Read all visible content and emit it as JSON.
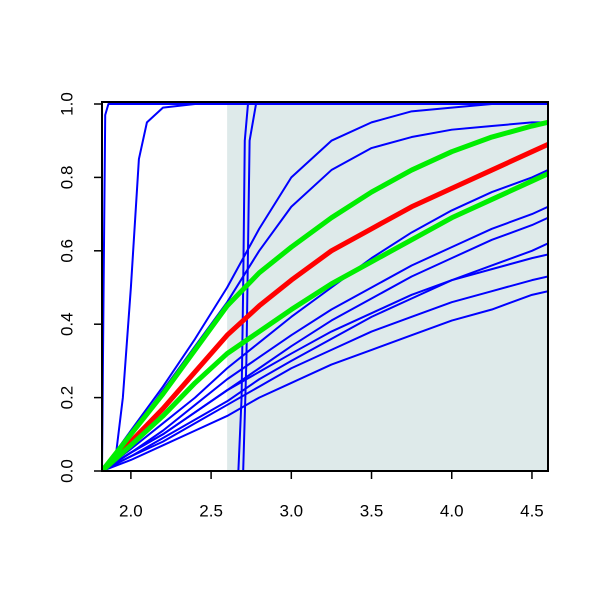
{
  "chart_data": {
    "type": "line",
    "xlim": [
      1.82,
      4.6
    ],
    "ylim": [
      0,
      1
    ],
    "xticks": [
      {
        "value": 2,
        "label": "2.0"
      },
      {
        "value": 2.5,
        "label": "2.5"
      },
      {
        "value": 3,
        "label": "3.0"
      },
      {
        "value": 3.5,
        "label": "3.5"
      },
      {
        "value": 4,
        "label": "4.0"
      },
      {
        "value": 4.5,
        "label": "4.5"
      }
    ],
    "yticks": [
      {
        "value": 0,
        "label": "0.0"
      },
      {
        "value": 0.2,
        "label": "0.2"
      },
      {
        "value": 0.4,
        "label": "0.4"
      },
      {
        "value": 0.6,
        "label": "0.6"
      },
      {
        "value": 0.8,
        "label": "0.8"
      },
      {
        "value": 1,
        "label": "1.0"
      }
    ],
    "shaded_region": {
      "x": [
        2.6,
        4.6
      ],
      "color": "#deeaea"
    },
    "series": [
      {
        "color": "#0000ff",
        "x": [
          1.82,
          1.83,
          1.84,
          1.86,
          4.6
        ],
        "values": [
          0,
          0.5,
          0.97,
          1,
          1
        ]
      },
      {
        "color": "#0000ff",
        "x": [
          1.82,
          1.9,
          1.95,
          2.0,
          2.05,
          2.1,
          2.2,
          2.4,
          4.6
        ],
        "values": [
          0,
          0.02,
          0.2,
          0.5,
          0.85,
          0.95,
          0.99,
          1,
          1
        ]
      },
      {
        "color": "#0000ff",
        "x": [
          1.82,
          2.67,
          2.69,
          2.7,
          2.71,
          2.73,
          4.6
        ],
        "values": [
          0,
          0,
          0.2,
          0.5,
          0.9,
          1,
          1
        ]
      },
      {
        "color": "#0000ff",
        "x": [
          1.82,
          2.7,
          2.72,
          2.73,
          2.74,
          2.78,
          4.6
        ],
        "values": [
          0,
          0,
          0.3,
          0.6,
          0.9,
          1,
          1
        ]
      },
      {
        "color": "#0000ff",
        "x": [
          1.82,
          2.0,
          2.2,
          2.4,
          2.6,
          2.8,
          3.0,
          3.25,
          3.5,
          3.75,
          4.0,
          4.25,
          4.5,
          4.6
        ],
        "values": [
          0,
          0.11,
          0.23,
          0.36,
          0.5,
          0.66,
          0.8,
          0.9,
          0.95,
          0.98,
          0.99,
          1,
          1,
          1
        ]
      },
      {
        "color": "#0000ff",
        "x": [
          1.82,
          2.0,
          2.2,
          2.4,
          2.6,
          2.8,
          3.0,
          3.25,
          3.5,
          3.75,
          4.0,
          4.25,
          4.5,
          4.6
        ],
        "values": [
          0,
          0.1,
          0.22,
          0.34,
          0.46,
          0.6,
          0.72,
          0.82,
          0.88,
          0.91,
          0.93,
          0.94,
          0.95,
          0.95
        ]
      },
      {
        "color": "#0000ff",
        "x": [
          1.82,
          2.0,
          2.2,
          2.4,
          2.6,
          2.8,
          3.0,
          3.25,
          3.5,
          3.75,
          4.0,
          4.25,
          4.5,
          4.6
        ],
        "values": [
          0,
          0.06,
          0.13,
          0.2,
          0.28,
          0.35,
          0.42,
          0.5,
          0.58,
          0.65,
          0.71,
          0.76,
          0.8,
          0.82
        ]
      },
      {
        "color": "#0000ff",
        "x": [
          1.82,
          2.0,
          2.2,
          2.4,
          2.6,
          2.8,
          3.0,
          3.25,
          3.5,
          3.75,
          4.0,
          4.25,
          4.5,
          4.6
        ],
        "values": [
          0,
          0.05,
          0.11,
          0.18,
          0.25,
          0.31,
          0.37,
          0.44,
          0.5,
          0.56,
          0.61,
          0.66,
          0.7,
          0.72
        ]
      },
      {
        "color": "#0000ff",
        "x": [
          1.82,
          2.0,
          2.2,
          2.4,
          2.6,
          2.8,
          3.0,
          3.25,
          3.5,
          3.75,
          4.0,
          4.25,
          4.5,
          4.6
        ],
        "values": [
          0,
          0.05,
          0.1,
          0.16,
          0.22,
          0.28,
          0.34,
          0.41,
          0.47,
          0.53,
          0.58,
          0.63,
          0.67,
          0.69
        ]
      },
      {
        "color": "#0000ff",
        "x": [
          1.82,
          2.0,
          2.2,
          2.4,
          2.6,
          2.8,
          3.0,
          3.25,
          3.5,
          3.75,
          4.0,
          4.25,
          4.5,
          4.6
        ],
        "values": [
          0,
          0.04,
          0.09,
          0.14,
          0.19,
          0.25,
          0.3,
          0.36,
          0.42,
          0.47,
          0.52,
          0.56,
          0.6,
          0.62
        ]
      },
      {
        "color": "#0000ff",
        "x": [
          1.82,
          2.0,
          2.2,
          2.4,
          2.6,
          2.8,
          3.0,
          3.25,
          3.5,
          3.75,
          4.0,
          4.25,
          4.5,
          4.6
        ],
        "values": [
          0,
          0.05,
          0.1,
          0.16,
          0.22,
          0.27,
          0.32,
          0.38,
          0.43,
          0.48,
          0.52,
          0.55,
          0.58,
          0.59
        ]
      },
      {
        "color": "#0000ff",
        "x": [
          1.82,
          2.0,
          2.2,
          2.4,
          2.6,
          2.8,
          3.0,
          3.25,
          3.5,
          3.75,
          4.0,
          4.25,
          4.5,
          4.6
        ],
        "values": [
          0,
          0.04,
          0.08,
          0.13,
          0.18,
          0.23,
          0.28,
          0.33,
          0.38,
          0.42,
          0.46,
          0.49,
          0.52,
          0.53
        ]
      },
      {
        "color": "#0000ff",
        "x": [
          1.82,
          2.0,
          2.2,
          2.4,
          2.6,
          2.8,
          3.0,
          3.25,
          3.5,
          3.75,
          4.0,
          4.25,
          4.5,
          4.6
        ],
        "values": [
          0,
          0.03,
          0.07,
          0.11,
          0.15,
          0.2,
          0.24,
          0.29,
          0.33,
          0.37,
          0.41,
          0.44,
          0.48,
          0.49
        ]
      },
      {
        "color": "#ff0000",
        "width": "thick",
        "x": [
          1.82,
          2.0,
          2.2,
          2.4,
          2.6,
          2.8,
          3.0,
          3.25,
          3.5,
          3.75,
          4.0,
          4.25,
          4.5,
          4.6
        ],
        "values": [
          0,
          0.08,
          0.17,
          0.27,
          0.37,
          0.45,
          0.52,
          0.6,
          0.66,
          0.72,
          0.77,
          0.82,
          0.87,
          0.89
        ]
      },
      {
        "color": "#00ee00",
        "width": "thick",
        "x": [
          1.82,
          2.0,
          2.2,
          2.4,
          2.6,
          2.8,
          3.0,
          3.25,
          3.5,
          3.75,
          4.0,
          4.25,
          4.5,
          4.6
        ],
        "values": [
          0,
          0.1,
          0.21,
          0.33,
          0.45,
          0.54,
          0.61,
          0.69,
          0.76,
          0.82,
          0.87,
          0.91,
          0.94,
          0.95
        ]
      },
      {
        "color": "#00ee00",
        "width": "thick",
        "x": [
          1.82,
          2.0,
          2.2,
          2.4,
          2.6,
          2.8,
          3.0,
          3.25,
          3.5,
          3.75,
          4.0,
          4.25,
          4.5,
          4.6
        ],
        "values": [
          0,
          0.07,
          0.15,
          0.24,
          0.32,
          0.38,
          0.44,
          0.51,
          0.57,
          0.63,
          0.69,
          0.74,
          0.79,
          0.81
        ]
      }
    ]
  }
}
